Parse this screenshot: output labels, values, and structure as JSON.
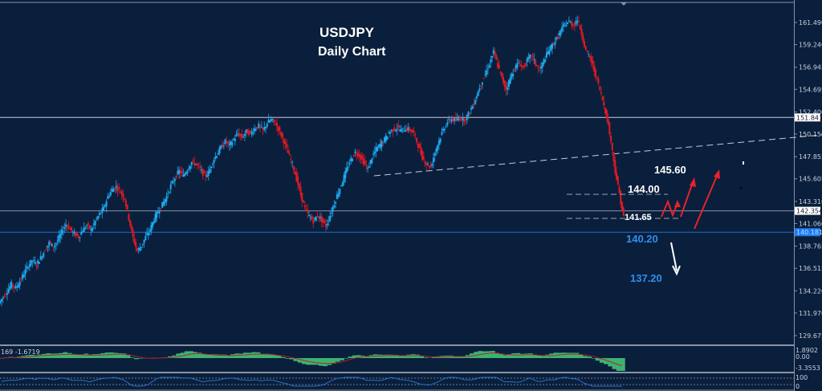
{
  "chart_data": {
    "type": "candlestick",
    "title": "USDJPY",
    "subtitle": "Daily Chart",
    "symbol": "USDJPY",
    "timeframe": "Daily",
    "ylim": [
      128.5,
      163.0
    ],
    "y_ticks": [
      161.49,
      159.24,
      156.945,
      154.695,
      152.4,
      150.15,
      147.855,
      145.605,
      143.31,
      141.06,
      138.765,
      136.515,
      134.22,
      131.97,
      129.675
    ],
    "y_tick_labels": [
      "161.490",
      "159.240",
      "156.945",
      "154.695",
      "152.400",
      "150.150",
      "147.855",
      "145.605",
      "143.310",
      "141.060",
      "138.765",
      "136.515",
      "134.220",
      "131.970",
      "129.675"
    ],
    "price_markers": [
      {
        "value": 151.841,
        "label": "151.841",
        "style": "white-box",
        "line_color": "#c8ccd4"
      },
      {
        "value": 142.354,
        "label": "142.354",
        "style": "white-box",
        "line_color": "#8a93a3"
      },
      {
        "value": 140.181,
        "label": "140.181",
        "style": "blue-box",
        "line_color": "#1e6fd0"
      }
    ],
    "trendline": {
      "style": "dashed",
      "from_price": 146.4,
      "to_price": 150.3
    },
    "annotations": [
      {
        "text": "145.60",
        "color": "#ffffff"
      },
      {
        "text": "144.00",
        "color": "#ffffff"
      },
      {
        "text": "141.65",
        "color": "#ffffff"
      },
      {
        "text": "140.20",
        "color": "#2f8ff0"
      },
      {
        "text": "137.20",
        "color": "#2f8ff0"
      }
    ],
    "close_series": [
      133.6,
      134.2,
      134.9,
      134.5,
      135.2,
      136.0,
      136.8,
      137.3,
      136.9,
      137.6,
      138.4,
      139.1,
      138.7,
      139.3,
      140.2,
      141.0,
      140.5,
      140.0,
      139.7,
      140.4,
      140.9,
      140.4,
      141.3,
      142.0,
      142.6,
      143.8,
      144.5,
      144.8,
      144.3,
      143.6,
      141.6,
      139.6,
      138.3,
      138.8,
      139.7,
      140.4,
      141.5,
      142.3,
      143.0,
      143.8,
      144.9,
      145.7,
      146.4,
      145.9,
      146.6,
      147.3,
      147.1,
      146.6,
      145.9,
      146.2,
      147.4,
      148.1,
      148.8,
      149.4,
      149.0,
      149.6,
      150.2,
      149.8,
      150.4,
      150.2,
      150.7,
      151.0,
      150.5,
      151.3,
      151.6,
      151.2,
      150.4,
      149.4,
      148.2,
      147.1,
      145.6,
      144.0,
      142.6,
      141.8,
      141.3,
      141.9,
      141.4,
      140.8,
      141.9,
      143.1,
      144.3,
      145.4,
      146.6,
      147.6,
      148.3,
      148.0,
      147.3,
      146.6,
      147.8,
      148.6,
      149.1,
      149.6,
      150.3,
      150.6,
      150.8,
      150.5,
      150.7,
      150.6,
      150.2,
      149.0,
      147.8,
      147.1,
      146.8,
      148.3,
      149.5,
      150.6,
      151.4,
      151.7,
      151.5,
      151.8,
      151.6,
      152.2,
      153.0,
      154.1,
      155.3,
      156.2,
      157.3,
      158.5,
      157.1,
      155.8,
      154.7,
      155.9,
      156.8,
      157.4,
      156.9,
      157.6,
      158.2,
      157.3,
      156.6,
      157.6,
      158.5,
      159.2,
      159.8,
      160.6,
      161.3,
      161.6,
      161.2,
      161.8,
      160.4,
      158.6,
      157.9,
      156.6,
      155.2,
      153.6,
      151.9,
      149.4,
      146.4,
      144.1,
      141.7
    ],
    "arrows": [
      {
        "direction": "up",
        "color": "#e8222b",
        "description": "zigzag bullish projection from 141.65 to 144.00"
      },
      {
        "direction": "up",
        "color": "#e8222b",
        "description": "bullish projection to 145.60"
      },
      {
        "direction": "up",
        "color": "#e8222b",
        "description": "bullish projection above 145.60"
      },
      {
        "direction": "down",
        "color": "#ffffff",
        "description": "bearish projection from 140.20 to 137.20"
      }
    ],
    "indicators": [
      {
        "name": "MACD",
        "label_text": "169 -1.6719",
        "y_ticks": [
          "1.8902",
          "0.00",
          "-3.3553"
        ],
        "histogram_color": "#3cb371",
        "signal_color": "#b02030"
      },
      {
        "name": "Oscillator",
        "y_ticks": [
          "100",
          "70",
          "30",
          "0"
        ],
        "line_color": "#2a6fc9",
        "levels": "dotted"
      }
    ],
    "colors": {
      "background": "#0a1f3c",
      "bull": "#1eaaf1",
      "bear": "#e01a23"
    }
  }
}
